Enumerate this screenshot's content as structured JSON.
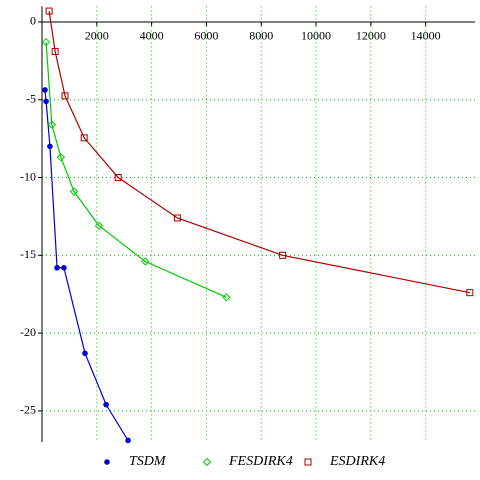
{
  "chart_data": {
    "type": "line",
    "xlim": [
      0,
      15800
    ],
    "ylim": [
      -27,
      1
    ],
    "xticks": [
      2000,
      4000,
      6000,
      8000,
      10000,
      12000,
      14000
    ],
    "yticks": [
      0,
      -5,
      -10,
      -15,
      -20,
      -25
    ],
    "grid": true,
    "legend": "bottom",
    "series": [
      {
        "name": "TSDM",
        "color": "#0000cc",
        "marker": "circle",
        "x": [
          110,
          150,
          290,
          550,
          800,
          1570,
          2340,
          3140
        ],
        "values": [
          -4.37,
          -5.1,
          -8.0,
          -15.8,
          -15.8,
          -21.3,
          -24.6,
          -26.9
        ]
      },
      {
        "name": "FESDIRK4",
        "color": "#00cc00",
        "marker": "diamond",
        "x": [
          150,
          360,
          690,
          1170,
          2080,
          3770,
          6730
        ],
        "values": [
          -1.3,
          -6.6,
          -8.7,
          -10.9,
          -13.1,
          -15.4,
          -17.7
        ]
      },
      {
        "name": "ESDIRK4",
        "color": "#aa0000",
        "marker": "square",
        "x": [
          260,
          480,
          840,
          1540,
          2780,
          4940,
          8780,
          15610
        ],
        "values": [
          0.7,
          -1.9,
          -4.75,
          -7.45,
          -10.0,
          -12.6,
          -15.0,
          -17.4
        ]
      }
    ]
  }
}
